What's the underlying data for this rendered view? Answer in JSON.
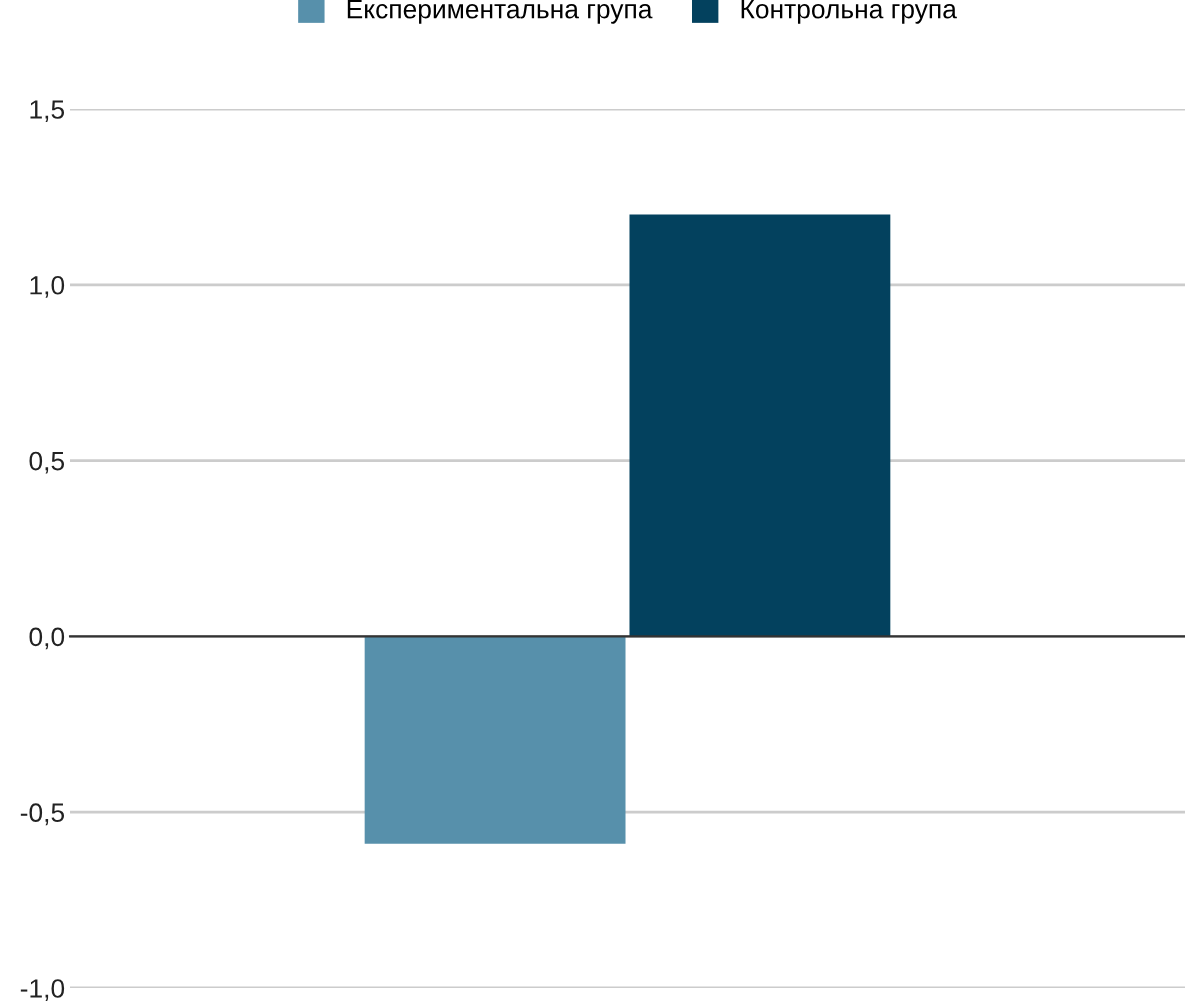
{
  "chart_data": {
    "type": "bar",
    "categories": [
      null
    ],
    "series": [
      {
        "name": "Експериментальна група",
        "color": "#5790ab",
        "values": [
          -0.59
        ]
      },
      {
        "name": "Контрольна група",
        "color": "#03415e",
        "values": [
          1.2
        ]
      }
    ],
    "ylim": [
      -1.0,
      1.5
    ],
    "yticks": [
      {
        "value": -1.0,
        "label": "-1,0"
      },
      {
        "value": -0.5,
        "label": "-0,5"
      },
      {
        "value": 0.0,
        "label": "0,0"
      },
      {
        "value": 0.5,
        "label": "0,5"
      },
      {
        "value": 1.0,
        "label": "1,0"
      },
      {
        "value": 1.5,
        "label": "1,5"
      }
    ],
    "grid": "y",
    "legend": "top"
  }
}
